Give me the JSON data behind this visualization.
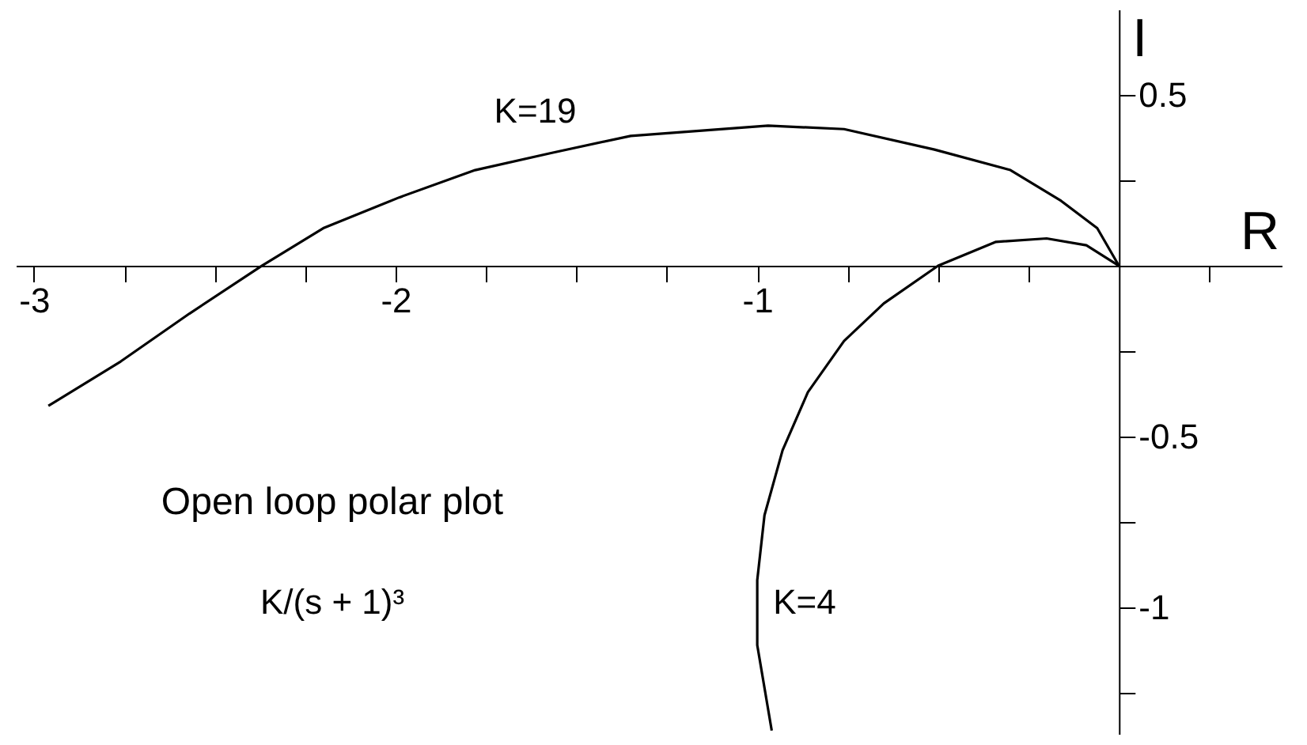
{
  "chart_data": {
    "type": "line",
    "xlabel": "R",
    "ylabel": "I",
    "xlim": [
      -3.05,
      0.45
    ],
    "ylim": [
      -1.37,
      0.75
    ],
    "xticks": [
      {
        "value": -3,
        "label": "-3"
      },
      {
        "value": -2.75,
        "label": null
      },
      {
        "value": -2.5,
        "label": null
      },
      {
        "value": -2.25,
        "label": null
      },
      {
        "value": -2,
        "label": "-2"
      },
      {
        "value": -1.75,
        "label": null
      },
      {
        "value": -1.5,
        "label": null
      },
      {
        "value": -1.25,
        "label": null
      },
      {
        "value": -1,
        "label": "-1"
      },
      {
        "value": -0.75,
        "label": null
      },
      {
        "value": -0.5,
        "label": null
      },
      {
        "value": -0.25,
        "label": null
      },
      {
        "value": 0.25,
        "label": null
      }
    ],
    "yticks": [
      {
        "value": 0.5,
        "label": "0.5"
      },
      {
        "value": 0.25,
        "label": null
      },
      {
        "value": -0.25,
        "label": null
      },
      {
        "value": -0.5,
        "label": "-0.5"
      },
      {
        "value": -0.75,
        "label": null
      },
      {
        "value": -1,
        "label": "-1"
      },
      {
        "value": -1.25,
        "label": null
      }
    ],
    "series": [
      {
        "name": "K=19",
        "color": "#000000",
        "x": [
          -2.96,
          -2.76,
          -2.57,
          -2.37,
          -2.2,
          -1.99,
          -1.78,
          -1.57,
          -1.35,
          -0.97,
          -0.76,
          -0.51,
          -0.3,
          -0.16,
          -0.06,
          0
        ],
        "values": [
          -0.41,
          -0.28,
          -0.14,
          0,
          0.11,
          0.2,
          0.28,
          0.33,
          0.38,
          0.41,
          0.4,
          0.34,
          0.28,
          0.19,
          0.11,
          0
        ]
      },
      {
        "name": "K=4",
        "color": "#000000",
        "x": [
          0,
          -0.09,
          -0.2,
          -0.34,
          -0.5,
          -0.65,
          -0.76,
          -0.86,
          -0.93,
          -0.98,
          -1,
          -1,
          -0.96
        ],
        "values": [
          0,
          0.06,
          0.08,
          0.07,
          0,
          -0.11,
          -0.22,
          -0.37,
          -0.54,
          -0.73,
          -0.92,
          -1.11,
          -1.36
        ]
      }
    ],
    "annotations": [
      "Open loop polar plot",
      "K/(s + 1)³"
    ],
    "grid": false,
    "legend": false,
    "marker": "none"
  }
}
